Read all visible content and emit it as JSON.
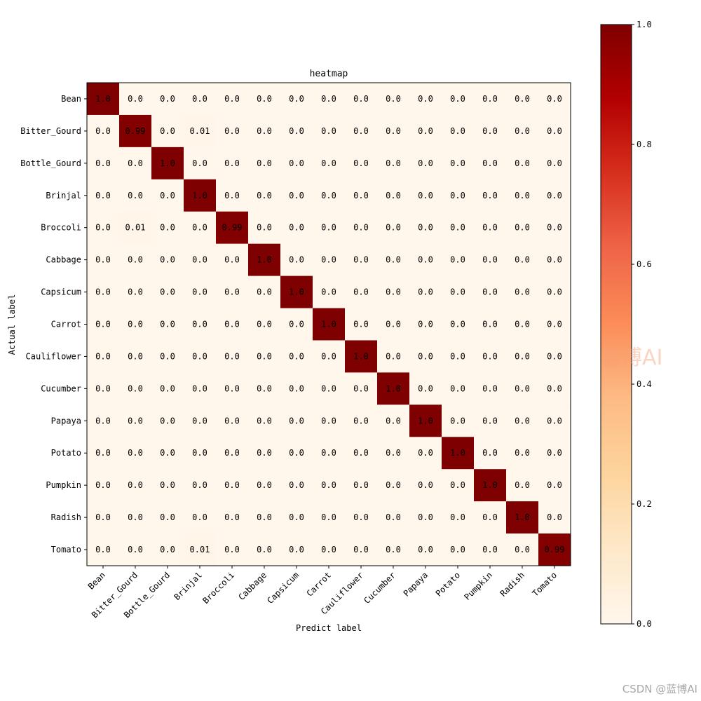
{
  "chart_data": {
    "type": "heatmap",
    "title": "heatmap",
    "xlabel": "Predict label",
    "ylabel": "Actual label",
    "categories": [
      "Bean",
      "Bitter_Gourd",
      "Bottle_Gourd",
      "Brinjal",
      "Broccoli",
      "Cabbage",
      "Capsicum",
      "Carrot",
      "Cauliflower",
      "Cucumber",
      "Papaya",
      "Potato",
      "Pumpkin",
      "Radish",
      "Tomato"
    ],
    "matrix": [
      [
        1.0,
        0.0,
        0.0,
        0.0,
        0.0,
        0.0,
        0.0,
        0.0,
        0.0,
        0.0,
        0.0,
        0.0,
        0.0,
        0.0,
        0.0
      ],
      [
        0.0,
        0.99,
        0.0,
        0.01,
        0.0,
        0.0,
        0.0,
        0.0,
        0.0,
        0.0,
        0.0,
        0.0,
        0.0,
        0.0,
        0.0
      ],
      [
        0.0,
        0.0,
        1.0,
        0.0,
        0.0,
        0.0,
        0.0,
        0.0,
        0.0,
        0.0,
        0.0,
        0.0,
        0.0,
        0.0,
        0.0
      ],
      [
        0.0,
        0.0,
        0.0,
        1.0,
        0.0,
        0.0,
        0.0,
        0.0,
        0.0,
        0.0,
        0.0,
        0.0,
        0.0,
        0.0,
        0.0
      ],
      [
        0.0,
        0.01,
        0.0,
        0.0,
        0.99,
        0.0,
        0.0,
        0.0,
        0.0,
        0.0,
        0.0,
        0.0,
        0.0,
        0.0,
        0.0
      ],
      [
        0.0,
        0.0,
        0.0,
        0.0,
        0.0,
        1.0,
        0.0,
        0.0,
        0.0,
        0.0,
        0.0,
        0.0,
        0.0,
        0.0,
        0.0
      ],
      [
        0.0,
        0.0,
        0.0,
        0.0,
        0.0,
        0.0,
        1.0,
        0.0,
        0.0,
        0.0,
        0.0,
        0.0,
        0.0,
        0.0,
        0.0
      ],
      [
        0.0,
        0.0,
        0.0,
        0.0,
        0.0,
        0.0,
        0.0,
        1.0,
        0.0,
        0.0,
        0.0,
        0.0,
        0.0,
        0.0,
        0.0
      ],
      [
        0.0,
        0.0,
        0.0,
        0.0,
        0.0,
        0.0,
        0.0,
        0.0,
        1.0,
        0.0,
        0.0,
        0.0,
        0.0,
        0.0,
        0.0
      ],
      [
        0.0,
        0.0,
        0.0,
        0.0,
        0.0,
        0.0,
        0.0,
        0.0,
        0.0,
        1.0,
        0.0,
        0.0,
        0.0,
        0.0,
        0.0
      ],
      [
        0.0,
        0.0,
        0.0,
        0.0,
        0.0,
        0.0,
        0.0,
        0.0,
        0.0,
        0.0,
        1.0,
        0.0,
        0.0,
        0.0,
        0.0
      ],
      [
        0.0,
        0.0,
        0.0,
        0.0,
        0.0,
        0.0,
        0.0,
        0.0,
        0.0,
        0.0,
        0.0,
        1.0,
        0.0,
        0.0,
        0.0
      ],
      [
        0.0,
        0.0,
        0.0,
        0.0,
        0.0,
        0.0,
        0.0,
        0.0,
        0.0,
        0.0,
        0.0,
        0.0,
        1.0,
        0.0,
        0.0
      ],
      [
        0.0,
        0.0,
        0.0,
        0.0,
        0.0,
        0.0,
        0.0,
        0.0,
        0.0,
        0.0,
        0.0,
        0.0,
        0.0,
        1.0,
        0.0
      ],
      [
        0.0,
        0.0,
        0.0,
        0.01,
        0.0,
        0.0,
        0.0,
        0.0,
        0.0,
        0.0,
        0.0,
        0.0,
        0.0,
        0.0,
        0.99
      ]
    ],
    "colorbar": {
      "range": [
        0.0,
        1.0
      ],
      "ticks": [
        0.0,
        0.2,
        0.4,
        0.6,
        0.8,
        1.0
      ],
      "tick_labels": [
        "0.0",
        "0.2",
        "0.4",
        "0.6",
        "0.8",
        "1.0"
      ],
      "colormap": "OrRd",
      "colors": [
        "#fff7ec",
        "#fee8c8",
        "#fdd49e",
        "#fdbb84",
        "#fc8d59",
        "#ef6548",
        "#d7301f",
        "#b30000",
        "#7f0000"
      ]
    },
    "grid": false,
    "colorbar_position": "right"
  },
  "watermark": {
    "text": "蓝博AI",
    "color": "#f2a27a"
  },
  "footer": {
    "text": "CSDN @蓝博AI"
  }
}
